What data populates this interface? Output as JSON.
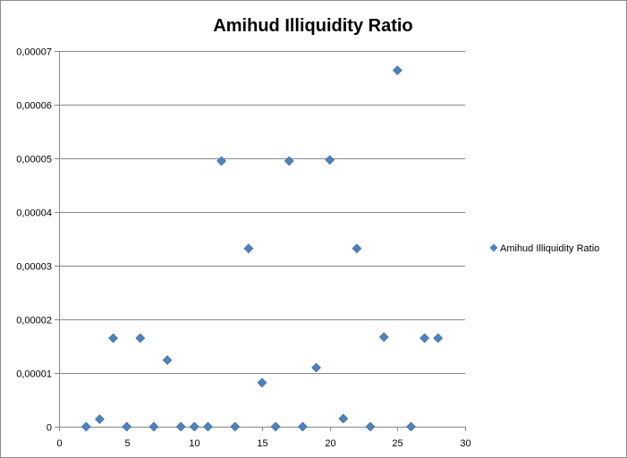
{
  "chart_data": {
    "type": "scatter",
    "title": "Amihud Illiquidity Ratio",
    "xlabel": "",
    "ylabel": "",
    "xlim": [
      0,
      30
    ],
    "ylim": [
      0,
      7e-05
    ],
    "x_ticks": [
      0,
      5,
      10,
      15,
      20,
      25,
      30
    ],
    "x_tick_labels": [
      "0",
      "5",
      "10",
      "15",
      "20",
      "25",
      "30"
    ],
    "y_ticks": [
      0,
      1e-05,
      2e-05,
      3e-05,
      4e-05,
      5e-05,
      6e-05,
      7e-05
    ],
    "y_tick_labels": [
      "0",
      "0,00001",
      "0,00002",
      "0,00003",
      "0,00004",
      "0,00005",
      "0,00006",
      "0,00007"
    ],
    "grid": "horizontal",
    "legend_position": "right",
    "series": [
      {
        "name": "Amihud Illiquidity Ratio",
        "color": "#4F81BD",
        "marker": "diamond",
        "points": [
          [
            2,
            0
          ],
          [
            3,
            1.4e-06
          ],
          [
            4,
            1.65e-05
          ],
          [
            5,
            0
          ],
          [
            6,
            1.65e-05
          ],
          [
            7,
            0
          ],
          [
            8,
            1.24e-05
          ],
          [
            9,
            0
          ],
          [
            10,
            0
          ],
          [
            11,
            0
          ],
          [
            12,
            4.95e-05
          ],
          [
            13,
            0
          ],
          [
            14,
            3.32e-05
          ],
          [
            15,
            8.2e-06
          ],
          [
            16,
            0
          ],
          [
            17,
            4.95e-05
          ],
          [
            18,
            0
          ],
          [
            19,
            1.1e-05
          ],
          [
            20,
            4.97e-05
          ],
          [
            21,
            1.5e-06
          ],
          [
            22,
            3.32e-05
          ],
          [
            23,
            0
          ],
          [
            24,
            1.67e-05
          ],
          [
            25,
            6.64e-05
          ],
          [
            26,
            0
          ],
          [
            27,
            1.65e-05
          ],
          [
            28,
            1.65e-05
          ]
        ]
      }
    ]
  }
}
